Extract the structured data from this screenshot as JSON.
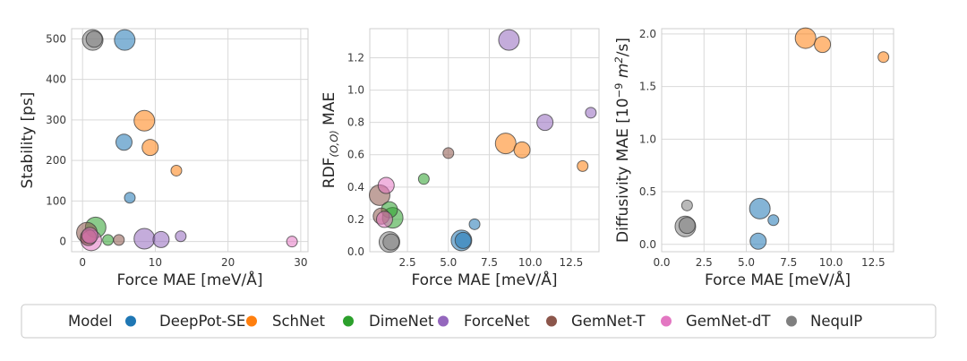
{
  "colors": {
    "DeepPot-SE": "#1f77b4",
    "SchNet": "#ff7f0e",
    "DimeNet": "#2ca02c",
    "ForceNet": "#9467bd",
    "GemNet-T": "#8c564b",
    "GemNet-dT": "#e377c2",
    "NequIP": "#7f7f7f"
  },
  "legend": {
    "entries": [
      "Model",
      "DeepPot-SE",
      "SchNet",
      "DimeNet",
      "ForceNet",
      "GemNet-T",
      "GemNet-dT",
      "NequIP"
    ],
    "model_marker_color": "#1f77b4"
  },
  "chart_data": [
    {
      "type": "scatter",
      "xlabel": "Force MAE [meV/Å]",
      "ylabel": "Stability [ps]",
      "xlim": [
        -1.5,
        31
      ],
      "ylim": [
        -25,
        525
      ],
      "xticks": [
        0,
        10,
        20,
        30
      ],
      "yticks": [
        0,
        100,
        200,
        300,
        400,
        500
      ],
      "grid": true,
      "points": [
        {
          "model": "NequIP",
          "x": 1.4,
          "y": 497,
          "size": 3
        },
        {
          "model": "NequIP",
          "x": 1.6,
          "y": 499,
          "size": 2
        },
        {
          "model": "DeepPot-SE",
          "x": 5.8,
          "y": 497,
          "size": 3
        },
        {
          "model": "SchNet",
          "x": 8.5,
          "y": 298,
          "size": 3
        },
        {
          "model": "DeepPot-SE",
          "x": 5.7,
          "y": 245,
          "size": 2
        },
        {
          "model": "SchNet",
          "x": 9.3,
          "y": 232,
          "size": 2
        },
        {
          "model": "SchNet",
          "x": 12.9,
          "y": 175,
          "size": 1
        },
        {
          "model": "DeepPot-SE",
          "x": 6.5,
          "y": 108,
          "size": 1
        },
        {
          "model": "DimeNet",
          "x": 1.8,
          "y": 35,
          "size": 3
        },
        {
          "model": "GemNet-T",
          "x": 0.6,
          "y": 22,
          "size": 3
        },
        {
          "model": "GemNet-T",
          "x": 0.8,
          "y": 10,
          "size": 2
        },
        {
          "model": "GemNet-dT",
          "x": 1.0,
          "y": 15,
          "size": 2
        },
        {
          "model": "GemNet-dT",
          "x": 1.2,
          "y": 3,
          "size": 3
        },
        {
          "model": "DimeNet",
          "x": 3.5,
          "y": 4,
          "size": 1
        },
        {
          "model": "GemNet-T",
          "x": 5.0,
          "y": 4,
          "size": 1
        },
        {
          "model": "ForceNet",
          "x": 8.5,
          "y": 7,
          "size": 3
        },
        {
          "model": "ForceNet",
          "x": 10.8,
          "y": 5,
          "size": 2
        },
        {
          "model": "ForceNet",
          "x": 13.5,
          "y": 13,
          "size": 1
        },
        {
          "model": "GemNet-dT",
          "x": 28.8,
          "y": 0,
          "size": 1
        }
      ]
    },
    {
      "type": "scatter",
      "xlabel": "Force MAE [meV/Å]",
      "ylabel": "RDF(O,O) MAE",
      "ylabel_main": "RDF",
      "ylabel_sub": "(O,O)",
      "ylabel_tail": " MAE",
      "xlim": [
        0.2,
        14.2
      ],
      "ylim": [
        0.0,
        1.38
      ],
      "xticks": [
        2.5,
        5.0,
        7.5,
        10.0,
        12.5
      ],
      "yticks": [
        0.0,
        0.2,
        0.4,
        0.6,
        0.8,
        1.0,
        1.2
      ],
      "grid": true,
      "points": [
        {
          "model": "ForceNet",
          "x": 8.7,
          "y": 1.31,
          "size": 3
        },
        {
          "model": "ForceNet",
          "x": 13.7,
          "y": 0.86,
          "size": 1
        },
        {
          "model": "ForceNet",
          "x": 10.9,
          "y": 0.8,
          "size": 2
        },
        {
          "model": "SchNet",
          "x": 8.5,
          "y": 0.67,
          "size": 3
        },
        {
          "model": "SchNet",
          "x": 9.5,
          "y": 0.63,
          "size": 2
        },
        {
          "model": "GemNet-T",
          "x": 5.0,
          "y": 0.61,
          "size": 1
        },
        {
          "model": "SchNet",
          "x": 13.2,
          "y": 0.53,
          "size": 1
        },
        {
          "model": "DimeNet",
          "x": 3.5,
          "y": 0.45,
          "size": 1
        },
        {
          "model": "GemNet-dT",
          "x": 1.2,
          "y": 0.41,
          "size": 2
        },
        {
          "model": "GemNet-T",
          "x": 0.8,
          "y": 0.35,
          "size": 3
        },
        {
          "model": "DimeNet",
          "x": 1.4,
          "y": 0.26,
          "size": 2
        },
        {
          "model": "GemNet-T",
          "x": 0.9,
          "y": 0.22,
          "size": 2
        },
        {
          "model": "DimeNet",
          "x": 1.6,
          "y": 0.21,
          "size": 3
        },
        {
          "model": "GemNet-dT",
          "x": 1.1,
          "y": 0.2,
          "size": 2
        },
        {
          "model": "DeepPot-SE",
          "x": 6.6,
          "y": 0.17,
          "size": 1
        },
        {
          "model": "DeepPot-SE",
          "x": 5.8,
          "y": 0.07,
          "size": 3
        },
        {
          "model": "DeepPot-SE",
          "x": 5.9,
          "y": 0.07,
          "size": 2
        },
        {
          "model": "NequIP",
          "x": 1.4,
          "y": 0.06,
          "size": 3
        },
        {
          "model": "NequIP",
          "x": 1.5,
          "y": 0.06,
          "size": 2
        }
      ]
    },
    {
      "type": "scatter",
      "xlabel": "Force MAE [meV/Å]",
      "ylabel": "Diffusivity MAE [10⁻⁹ m²/s]",
      "ylabel_main": "Diffusivity MAE [10",
      "ylabel_exp": "−9",
      "ylabel_unit": "m",
      "ylabel_unit_exp": "2",
      "ylabel_tail": "/s]",
      "xlim": [
        0.0,
        13.7
      ],
      "ylim": [
        -0.07,
        2.05
      ],
      "xticks": [
        0.0,
        2.5,
        5.0,
        7.5,
        10.0,
        12.5
      ],
      "yticks": [
        0.0,
        0.5,
        1.0,
        1.5,
        2.0
      ],
      "grid": true,
      "points": [
        {
          "model": "SchNet",
          "x": 8.5,
          "y": 1.96,
          "size": 3
        },
        {
          "model": "SchNet",
          "x": 9.5,
          "y": 1.9,
          "size": 2
        },
        {
          "model": "SchNet",
          "x": 13.1,
          "y": 1.78,
          "size": 1
        },
        {
          "model": "NequIP",
          "x": 1.5,
          "y": 0.37,
          "size": 1
        },
        {
          "model": "DeepPot-SE",
          "x": 5.8,
          "y": 0.34,
          "size": 3
        },
        {
          "model": "DeepPot-SE",
          "x": 6.6,
          "y": 0.23,
          "size": 1
        },
        {
          "model": "NequIP",
          "x": 1.4,
          "y": 0.17,
          "size": 3
        },
        {
          "model": "NequIP",
          "x": 1.5,
          "y": 0.18,
          "size": 2
        },
        {
          "model": "DeepPot-SE",
          "x": 5.7,
          "y": 0.03,
          "size": 2
        }
      ]
    }
  ]
}
